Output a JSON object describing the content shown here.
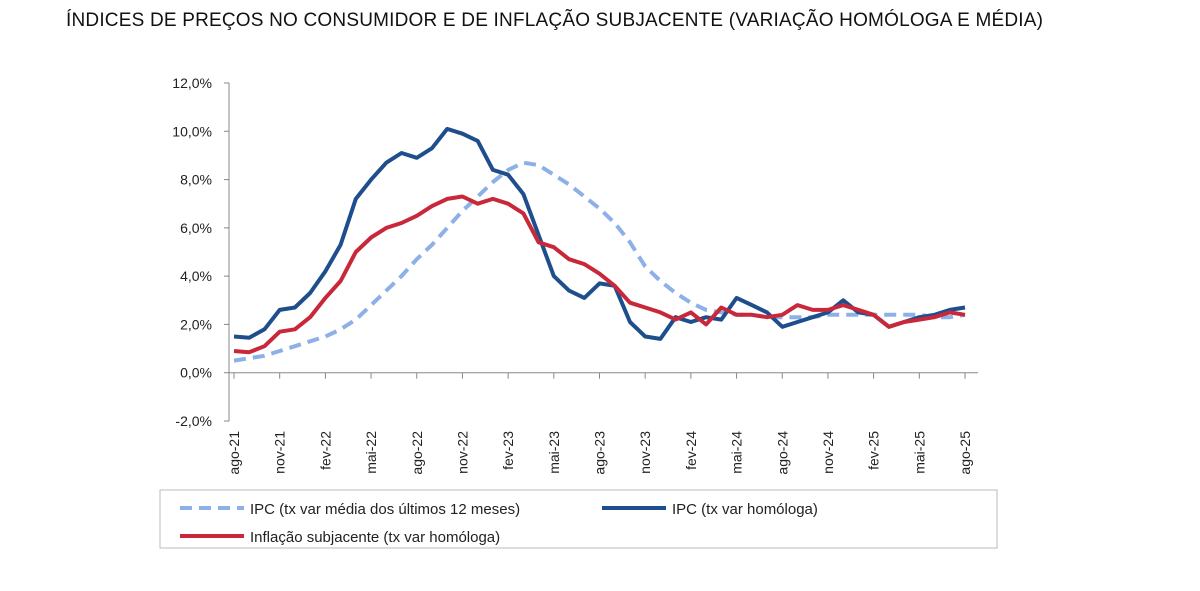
{
  "chart_data": {
    "type": "line",
    "title": "ÍNDICES DE PREÇOS NO CONSUMIDOR E DE INFLAÇÃO SUBJACENTE (VARIAÇÃO HOMÓLOGA E MÉDIA)",
    "ylim": [
      -2,
      12
    ],
    "yticks": [
      "-2,0%",
      "0,0%",
      "2,0%",
      "4,0%",
      "6,0%",
      "8,0%",
      "10,0%",
      "12,0%"
    ],
    "x_tick_labels": [
      "ago-21",
      "nov-21",
      "fev-22",
      "mai-22",
      "ago-22",
      "nov-22",
      "fev-23",
      "mai-23",
      "ago-23",
      "nov-23",
      "fev-24",
      "mai-24",
      "ago-24",
      "nov-24",
      "fev-25",
      "mai-25",
      "ago-25"
    ],
    "x_start": "ago-21",
    "x_end": "ago-25",
    "frequency": "monthly",
    "grid": false,
    "legend_position": "bottom",
    "series": [
      {
        "name": "IPC (tx var média dos últimos 12 meses)",
        "color": "#8DB0E8",
        "style": "dashed",
        "values": [
          0.5,
          0.6,
          0.7,
          0.9,
          1.1,
          1.3,
          1.5,
          1.8,
          2.2,
          2.8,
          3.4,
          4.0,
          4.7,
          5.3,
          6.0,
          6.7,
          7.3,
          7.9,
          8.4,
          8.7,
          8.6,
          8.2,
          7.8,
          7.3,
          6.8,
          6.2,
          5.4,
          4.4,
          3.8,
          3.3,
          2.9,
          2.6,
          2.5,
          2.4,
          2.4,
          2.3,
          2.3,
          2.3,
          2.3,
          2.4,
          2.4,
          2.4,
          2.4,
          2.4,
          2.4,
          2.4,
          2.3,
          2.3,
          2.4
        ]
      },
      {
        "name": "IPC (tx var homóloga)",
        "color": "#1F4E8C",
        "style": "solid",
        "values": [
          1.5,
          1.45,
          1.8,
          2.6,
          2.7,
          3.3,
          4.2,
          5.3,
          7.2,
          8.0,
          8.7,
          9.1,
          8.9,
          9.3,
          10.1,
          9.9,
          9.6,
          8.4,
          8.2,
          7.4,
          5.7,
          4.0,
          3.4,
          3.1,
          3.7,
          3.6,
          2.1,
          1.5,
          1.4,
          2.3,
          2.1,
          2.3,
          2.2,
          3.1,
          2.8,
          2.5,
          1.9,
          2.1,
          2.3,
          2.5,
          3.0,
          2.5,
          2.4,
          1.9,
          2.1,
          2.3,
          2.4,
          2.6,
          2.7
        ]
      },
      {
        "name": "Inflação subjacente (tx var homóloga)",
        "color": "#C8283A",
        "style": "solid",
        "values": [
          0.9,
          0.85,
          1.1,
          1.7,
          1.8,
          2.3,
          3.1,
          3.8,
          5.0,
          5.6,
          6.0,
          6.2,
          6.5,
          6.9,
          7.2,
          7.3,
          7.0,
          7.2,
          7.0,
          6.6,
          5.4,
          5.2,
          4.7,
          4.5,
          4.1,
          3.6,
          2.9,
          2.7,
          2.5,
          2.2,
          2.5,
          2.0,
          2.7,
          2.4,
          2.4,
          2.3,
          2.4,
          2.8,
          2.6,
          2.6,
          2.8,
          2.6,
          2.4,
          1.9,
          2.1,
          2.2,
          2.3,
          2.5,
          2.4
        ]
      }
    ]
  }
}
